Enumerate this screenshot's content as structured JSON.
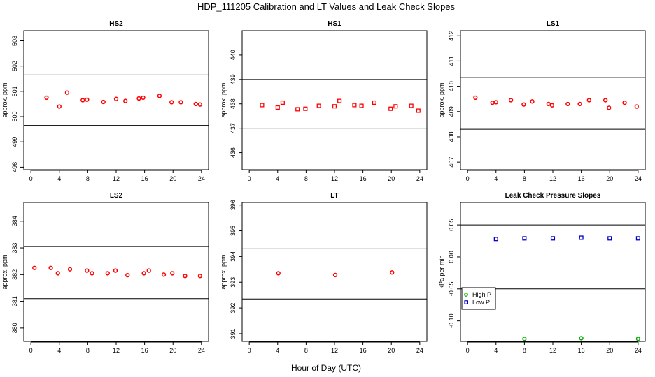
{
  "page_title": "HDP_111205  Calibration and LT Values and Leak Check Slopes",
  "x_axis_label": "Hour of Day (UTC)",
  "chart_data": [
    {
      "type": "scatter",
      "title": "HS2",
      "ylabel": "approx. ppm",
      "xlim": [
        -1,
        25
      ],
      "ylim": [
        497.9,
        503.4
      ],
      "xticks": [
        "0",
        "4",
        "8",
        "12",
        "16",
        "20",
        "24"
      ],
      "yticks": [
        "498",
        "499",
        "500",
        "501",
        "502",
        "503"
      ],
      "hlines": [
        499.65,
        501.65
      ],
      "series": [
        {
          "name": "HS2",
          "color": "#ff0000",
          "marker": "circle",
          "x": [
            2.2,
            4.0,
            5.1,
            7.3,
            7.9,
            10.2,
            12.0,
            13.3,
            15.2,
            15.8,
            18.1,
            19.8,
            21.1,
            23.2,
            23.8
          ],
          "y": [
            500.75,
            500.4,
            500.95,
            500.65,
            500.67,
            500.58,
            500.7,
            500.62,
            500.72,
            500.75,
            500.82,
            500.57,
            500.57,
            500.5,
            500.48
          ]
        }
      ]
    },
    {
      "type": "scatter",
      "title": "HS1",
      "ylabel": "approx. ppm",
      "xlim": [
        -1,
        25
      ],
      "ylim": [
        435.3,
        441.0
      ],
      "xticks": [
        "0",
        "4",
        "8",
        "12",
        "16",
        "20",
        "24"
      ],
      "yticks": [
        "436",
        "437",
        "438",
        "439",
        "440"
      ],
      "hlines": [
        437.0,
        439.0
      ],
      "series": [
        {
          "name": "HS1",
          "color": "#ff0000",
          "marker": "square",
          "x": [
            1.8,
            4.0,
            4.7,
            6.8,
            7.9,
            9.8,
            12.0,
            12.7,
            14.8,
            15.8,
            17.6,
            19.9,
            20.6,
            22.8,
            23.8
          ],
          "y": [
            437.95,
            437.85,
            438.05,
            437.78,
            437.8,
            437.92,
            437.9,
            438.12,
            437.95,
            437.92,
            438.05,
            437.8,
            437.9,
            437.92,
            437.72
          ]
        }
      ]
    },
    {
      "type": "scatter",
      "title": "LS1",
      "ylabel": "approx. ppm",
      "xlim": [
        -1,
        25
      ],
      "ylim": [
        406.7,
        412.2
      ],
      "xticks": [
        "0",
        "4",
        "8",
        "12",
        "16",
        "20",
        "24"
      ],
      "yticks": [
        "407",
        "408",
        "409",
        "410",
        "411",
        "412"
      ],
      "hlines": [
        408.3,
        410.35
      ],
      "series": [
        {
          "name": "LS1",
          "color": "#ff0000",
          "marker": "circle",
          "x": [
            1.1,
            3.5,
            4.0,
            6.1,
            7.9,
            9.1,
            11.4,
            11.9,
            14.1,
            15.8,
            17.1,
            19.4,
            19.9,
            22.1,
            23.8
          ],
          "y": [
            409.55,
            409.35,
            409.37,
            409.45,
            409.28,
            409.4,
            409.3,
            409.25,
            409.3,
            409.3,
            409.45,
            409.45,
            409.15,
            409.35,
            409.2
          ]
        }
      ]
    },
    {
      "type": "scatter",
      "title": "LS2",
      "ylabel": "approx. ppm",
      "xlim": [
        -1,
        25
      ],
      "ylim": [
        379.5,
        384.7
      ],
      "xticks": [
        "0",
        "4",
        "8",
        "12",
        "16",
        "20",
        "24"
      ],
      "yticks": [
        "380",
        "381",
        "382",
        "383",
        "384"
      ],
      "hlines": [
        381.1,
        383.05
      ],
      "series": [
        {
          "name": "LS2",
          "color": "#ff0000",
          "marker": "circle",
          "x": [
            0.5,
            2.8,
            3.8,
            5.5,
            7.9,
            8.6,
            10.8,
            11.9,
            13.6,
            15.9,
            16.6,
            18.7,
            19.9,
            21.7,
            23.8
          ],
          "y": [
            382.25,
            382.25,
            382.05,
            382.2,
            382.15,
            382.05,
            382.05,
            382.15,
            381.98,
            382.05,
            382.15,
            382.0,
            382.05,
            381.95,
            381.95
          ]
        }
      ]
    },
    {
      "type": "scatter",
      "title": "LT",
      "ylabel": "approx. ppm",
      "xlim": [
        -1,
        25
      ],
      "ylim": [
        390.7,
        396.1
      ],
      "xticks": [
        "0",
        "4",
        "8",
        "12",
        "16",
        "20",
        "24"
      ],
      "yticks": [
        "391",
        "392",
        "393",
        "394",
        "395",
        "396"
      ],
      "hlines": [
        392.35,
        394.3
      ],
      "series": [
        {
          "name": "LT",
          "color": "#ff0000",
          "marker": "circle",
          "x": [
            4.1,
            12.1,
            20.1
          ],
          "y": [
            393.35,
            393.28,
            393.38
          ]
        }
      ]
    },
    {
      "type": "scatter",
      "title": "Leak Check Pressure Slopes",
      "ylabel": "kPa per min",
      "xlim": [
        -1,
        25
      ],
      "ylim": [
        -0.132,
        0.085
      ],
      "xticks": [
        "0",
        "4",
        "8",
        "12",
        "16",
        "20",
        "24"
      ],
      "yticks": [
        "-0.10",
        "-0.05",
        "0.00",
        "0.05"
      ],
      "hlines": [
        0.05,
        -0.05
      ],
      "legend": {
        "position": "bottom-left",
        "entries": [
          "High P",
          "Low P"
        ]
      },
      "series": [
        {
          "name": "High P",
          "color": "#00aa00",
          "marker": "circle",
          "x": [
            8,
            16,
            24
          ],
          "y": [
            -0.128,
            -0.127,
            -0.128
          ]
        },
        {
          "name": "Low P",
          "color": "#0000cc",
          "marker": "square",
          "x": [
            4,
            8,
            12,
            16,
            20,
            24
          ],
          "y": [
            0.028,
            0.029,
            0.029,
            0.03,
            0.029,
            0.029
          ]
        }
      ]
    }
  ]
}
